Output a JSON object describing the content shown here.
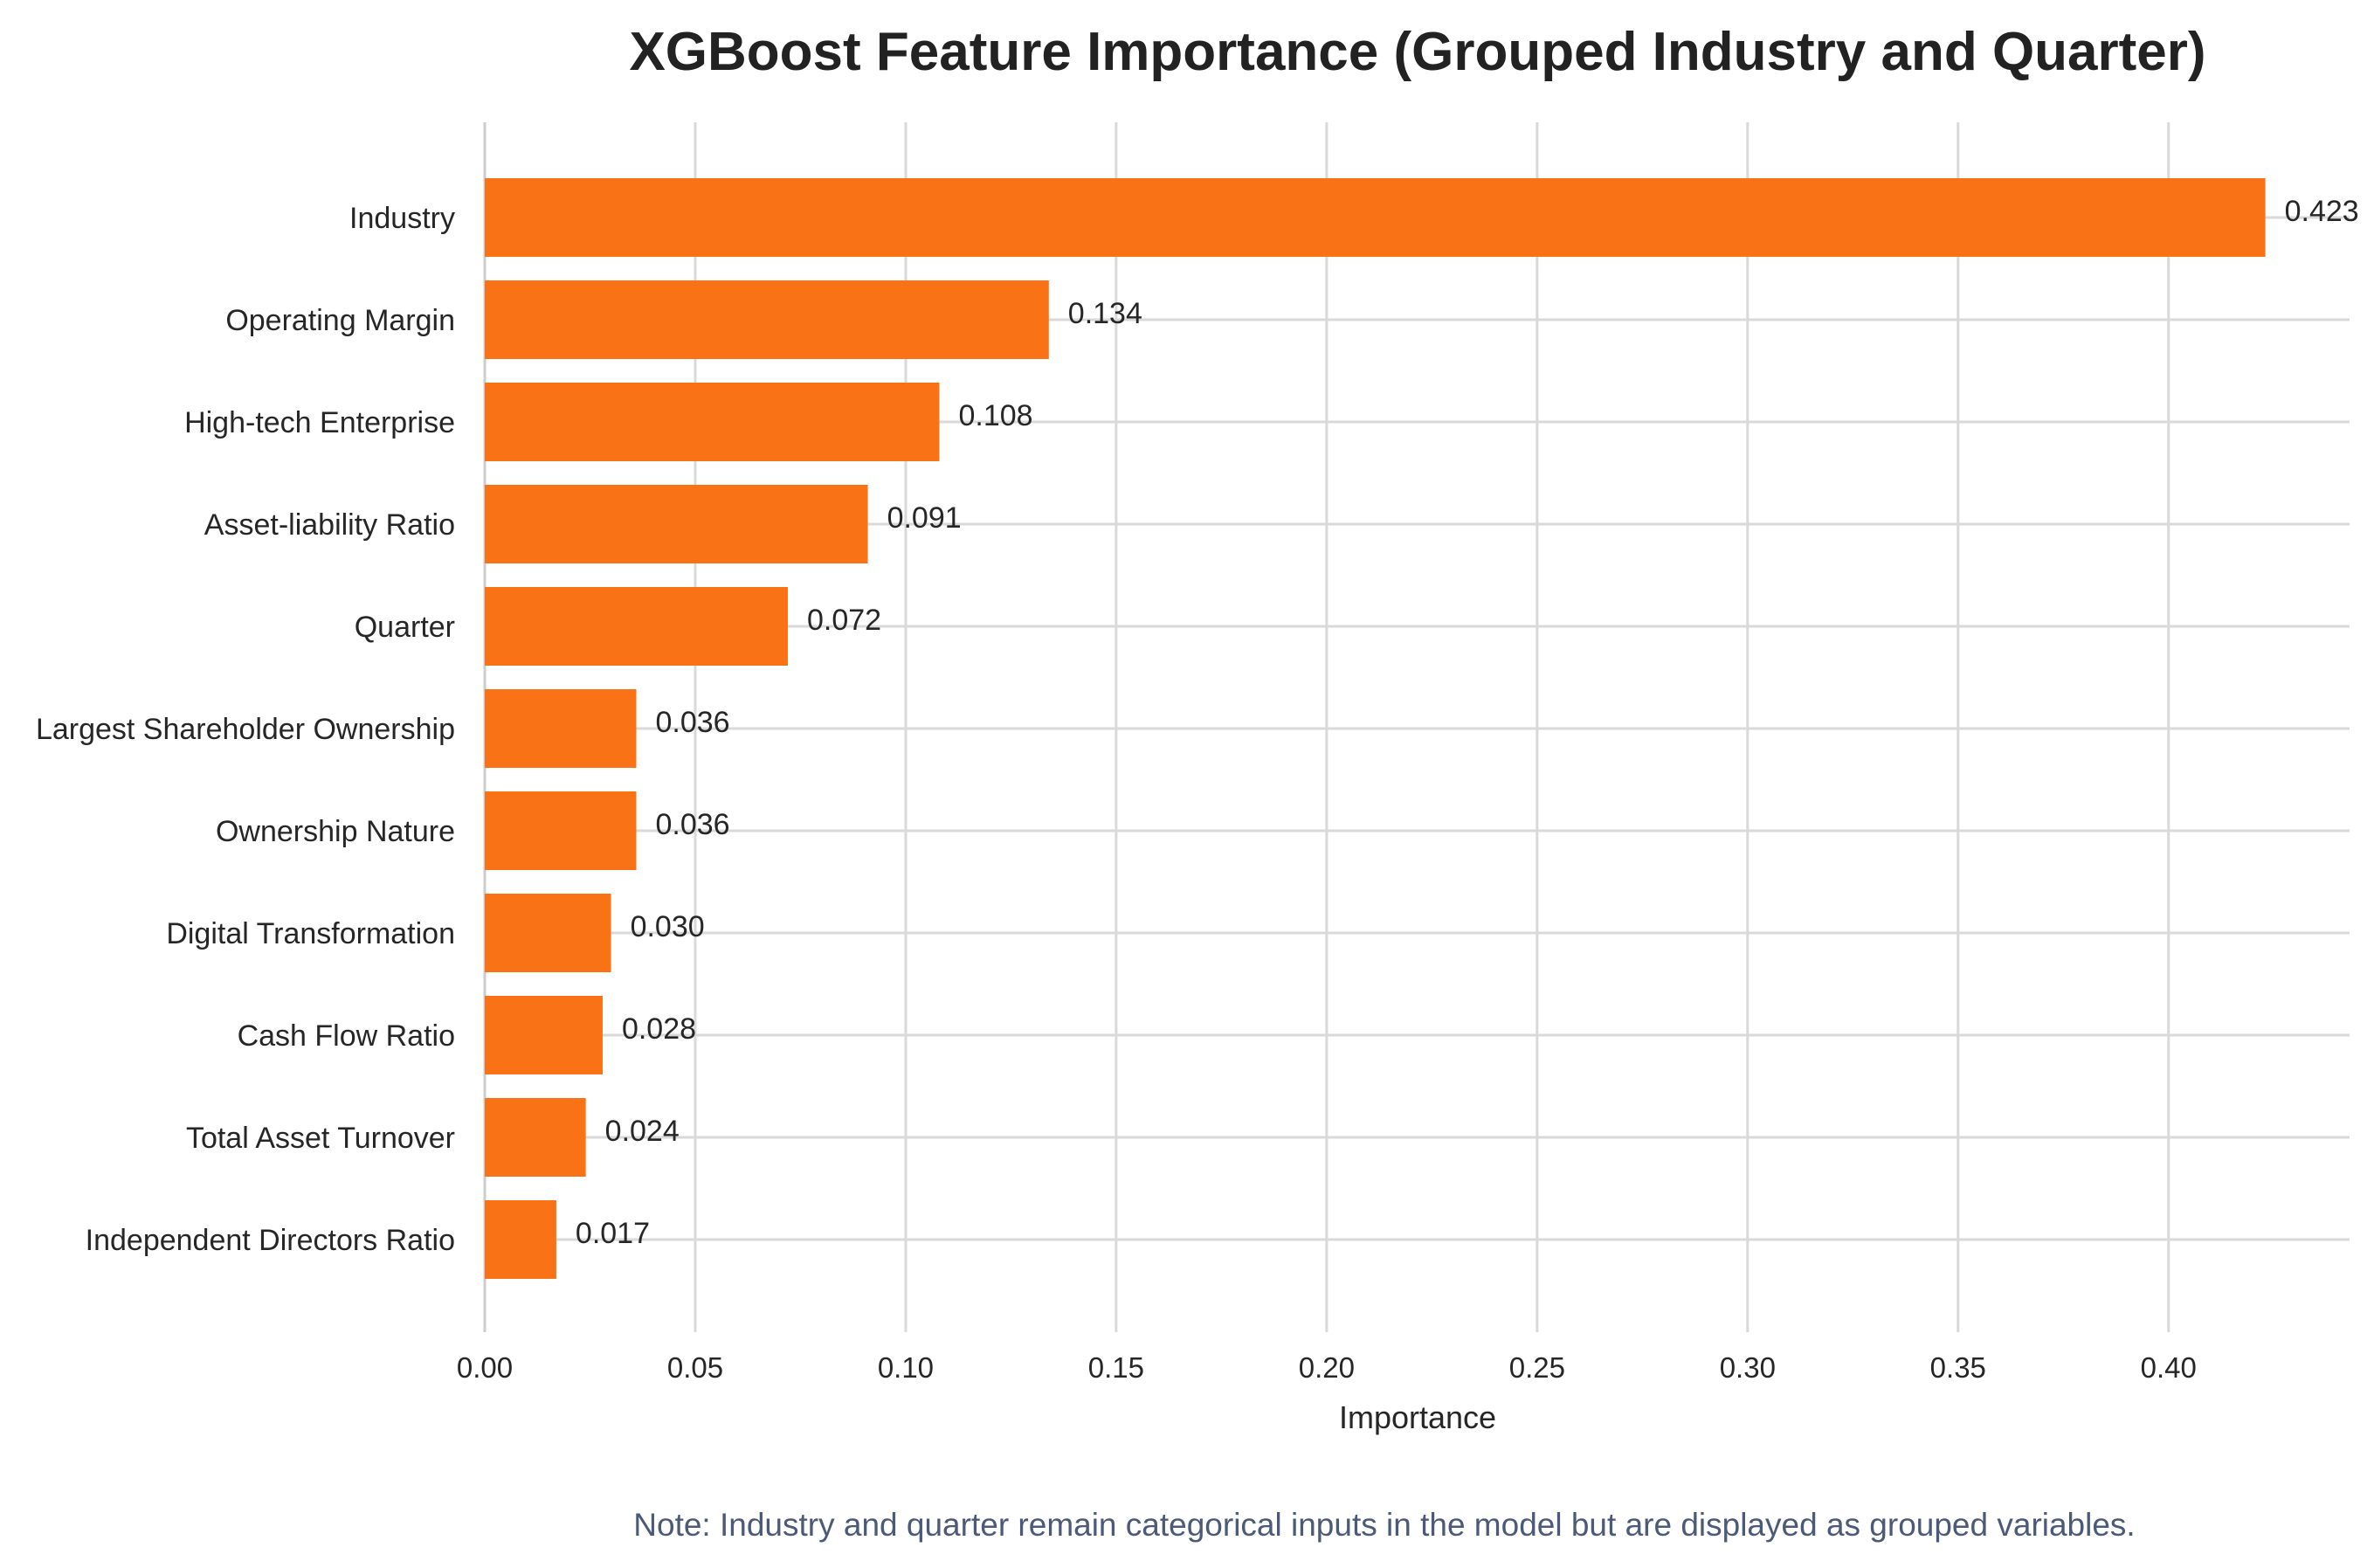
{
  "chart_data": {
    "type": "bar",
    "orientation": "horizontal",
    "title": "XGBoost Feature Importance (Grouped Industry and Quarter)",
    "xlabel": "Importance",
    "ylabel": "",
    "categories": [
      "Industry",
      "Operating Margin",
      "High-tech Enterprise",
      "Asset-liability Ratio",
      "Quarter",
      "Largest Shareholder Ownership",
      "Ownership Nature",
      "Digital Transformation",
      "Cash Flow Ratio",
      "Total Asset Turnover",
      "Independent Directors Ratio"
    ],
    "values": [
      0.423,
      0.134,
      0.108,
      0.091,
      0.072,
      0.036,
      0.036,
      0.03,
      0.028,
      0.024,
      0.017
    ],
    "value_labels": [
      "0.423",
      "0.134",
      "0.108",
      "0.091",
      "0.072",
      "0.036",
      "0.036",
      "0.030",
      "0.028",
      "0.024",
      "0.017"
    ],
    "xlim": [
      0,
      0.443
    ],
    "xticks": [
      0.0,
      0.05,
      0.1,
      0.15,
      0.2,
      0.25,
      0.3,
      0.35,
      0.4
    ],
    "xtick_labels": [
      "0.00",
      "0.05",
      "0.10",
      "0.15",
      "0.20",
      "0.25",
      "0.30",
      "0.35",
      "0.40"
    ],
    "grid": true,
    "legend": "none",
    "bar_color": "#f97316",
    "note": "Note: Industry and quarter remain categorical inputs in the model but are displayed as grouped variables.",
    "colors": {
      "title": "#222222",
      "text": "#262626",
      "note": "#4a5a78",
      "grid": "#d9d9d9"
    }
  }
}
